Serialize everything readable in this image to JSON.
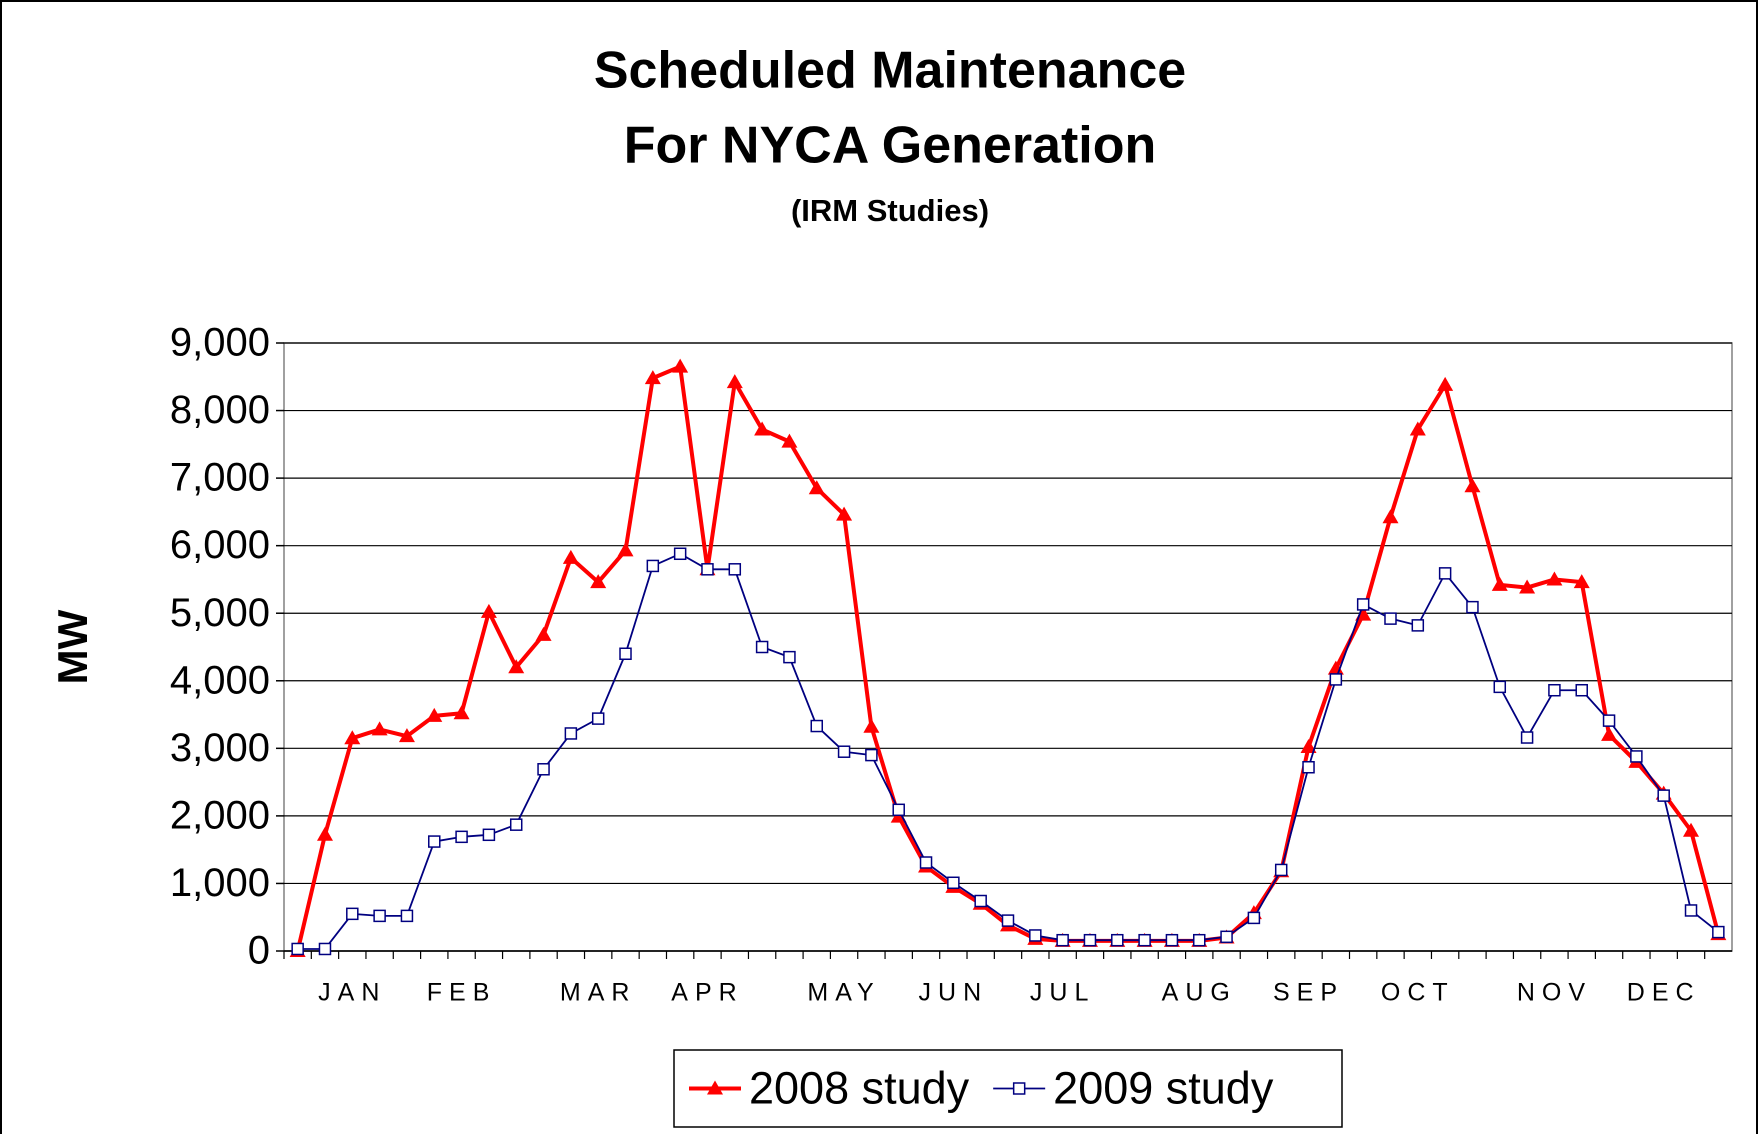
{
  "chart_data": {
    "type": "line",
    "title": "Scheduled Maintenance",
    "subtitle": "For NYCA Generation",
    "note": "(IRM Studies)",
    "y_label": "MW",
    "categories": [
      null,
      null,
      "JAN",
      null,
      null,
      null,
      "FEB",
      null,
      null,
      null,
      null,
      "MAR",
      null,
      null,
      null,
      "APR",
      null,
      null,
      null,
      null,
      "MAY",
      null,
      null,
      null,
      "JUN",
      null,
      null,
      null,
      "JUL",
      null,
      null,
      null,
      null,
      "AUG",
      null,
      null,
      null,
      "SEP",
      null,
      null,
      null,
      "OCT",
      null,
      null,
      null,
      null,
      "NOV",
      null,
      null,
      null,
      "DEC",
      null,
      null
    ],
    "series": [
      {
        "name": "2008 study",
        "color": "#ff0000",
        "marker": "triangle",
        "values": [
          0,
          1720,
          3150,
          3280,
          3180,
          3480,
          3520,
          5020,
          4200,
          4680,
          5820,
          5460,
          5930,
          8480,
          8650,
          5650,
          8420,
          7720,
          7540,
          6850,
          6460,
          3320,
          1990,
          1250,
          950,
          700,
          380,
          180,
          150,
          150,
          150,
          150,
          150,
          150,
          200,
          560,
          1180,
          3020,
          4180,
          4980,
          6420,
          7720,
          8380,
          6880,
          5420,
          5380,
          5500,
          5460,
          3200,
          2800,
          2330,
          1780,
          250
        ]
      },
      {
        "name": "2009 study",
        "color": "#000080",
        "marker": "square",
        "values": [
          30,
          30,
          550,
          520,
          520,
          1620,
          1690,
          1720,
          1870,
          2690,
          3220,
          3440,
          4400,
          5700,
          5880,
          5650,
          5650,
          4500,
          4350,
          3330,
          2950,
          2900,
          2090,
          1310,
          1010,
          740,
          450,
          230,
          160,
          160,
          160,
          160,
          160,
          160,
          210,
          490,
          1200,
          2720,
          4020,
          5130,
          4920,
          4820,
          5590,
          5090,
          3910,
          3160,
          3860,
          3860,
          3410,
          2880,
          2300,
          600,
          280
        ]
      }
    ],
    "ylim": [
      0,
      9000
    ],
    "yticks": [
      0,
      {
        "value": 1000,
        "label": "1,000"
      },
      {
        "value": 2000,
        "label": "2,000"
      },
      {
        "value": 3000,
        "label": "3,000"
      },
      {
        "value": 4000,
        "label": "4,000"
      },
      {
        "value": 5000,
        "label": "5,000"
      },
      {
        "value": 6000,
        "label": "6,000"
      },
      {
        "value": 7000,
        "label": "7,000"
      },
      {
        "value": 8000,
        "label": "8,000"
      },
      {
        "value": 9000,
        "label": "9,000"
      }
    ],
    "grid": true,
    "legend": "bottom"
  }
}
